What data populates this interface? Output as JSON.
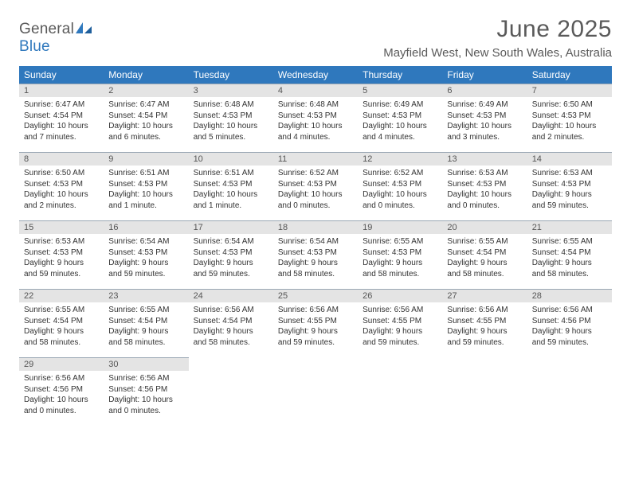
{
  "logo": {
    "text1": "General",
    "text2": "Blue"
  },
  "title": "June 2025",
  "location": "Mayfield West, New South Wales, Australia",
  "colors": {
    "header_bg": "#2f78bd",
    "header_text": "#ffffff",
    "daynum_bg": "#e4e4e4",
    "daynum_border": "#9aa7b4",
    "text": "#333333",
    "muted": "#5a5a5a",
    "page_bg": "#ffffff"
  },
  "typography": {
    "month_title_fontsize": 30,
    "location_fontsize": 15,
    "weekday_fontsize": 12,
    "daynum_fontsize": 11,
    "body_fontsize": 10
  },
  "layout": {
    "columns": 7,
    "rows": 5,
    "cell_aspect": "auto"
  },
  "weekdays": [
    "Sunday",
    "Monday",
    "Tuesday",
    "Wednesday",
    "Thursday",
    "Friday",
    "Saturday"
  ],
  "days": [
    {
      "n": 1,
      "sunrise": "6:47 AM",
      "sunset": "4:54 PM",
      "daylight": "10 hours and 7 minutes."
    },
    {
      "n": 2,
      "sunrise": "6:47 AM",
      "sunset": "4:54 PM",
      "daylight": "10 hours and 6 minutes."
    },
    {
      "n": 3,
      "sunrise": "6:48 AM",
      "sunset": "4:53 PM",
      "daylight": "10 hours and 5 minutes."
    },
    {
      "n": 4,
      "sunrise": "6:48 AM",
      "sunset": "4:53 PM",
      "daylight": "10 hours and 4 minutes."
    },
    {
      "n": 5,
      "sunrise": "6:49 AM",
      "sunset": "4:53 PM",
      "daylight": "10 hours and 4 minutes."
    },
    {
      "n": 6,
      "sunrise": "6:49 AM",
      "sunset": "4:53 PM",
      "daylight": "10 hours and 3 minutes."
    },
    {
      "n": 7,
      "sunrise": "6:50 AM",
      "sunset": "4:53 PM",
      "daylight": "10 hours and 2 minutes."
    },
    {
      "n": 8,
      "sunrise": "6:50 AM",
      "sunset": "4:53 PM",
      "daylight": "10 hours and 2 minutes."
    },
    {
      "n": 9,
      "sunrise": "6:51 AM",
      "sunset": "4:53 PM",
      "daylight": "10 hours and 1 minute."
    },
    {
      "n": 10,
      "sunrise": "6:51 AM",
      "sunset": "4:53 PM",
      "daylight": "10 hours and 1 minute."
    },
    {
      "n": 11,
      "sunrise": "6:52 AM",
      "sunset": "4:53 PM",
      "daylight": "10 hours and 0 minutes."
    },
    {
      "n": 12,
      "sunrise": "6:52 AM",
      "sunset": "4:53 PM",
      "daylight": "10 hours and 0 minutes."
    },
    {
      "n": 13,
      "sunrise": "6:53 AM",
      "sunset": "4:53 PM",
      "daylight": "10 hours and 0 minutes."
    },
    {
      "n": 14,
      "sunrise": "6:53 AM",
      "sunset": "4:53 PM",
      "daylight": "9 hours and 59 minutes."
    },
    {
      "n": 15,
      "sunrise": "6:53 AM",
      "sunset": "4:53 PM",
      "daylight": "9 hours and 59 minutes."
    },
    {
      "n": 16,
      "sunrise": "6:54 AM",
      "sunset": "4:53 PM",
      "daylight": "9 hours and 59 minutes."
    },
    {
      "n": 17,
      "sunrise": "6:54 AM",
      "sunset": "4:53 PM",
      "daylight": "9 hours and 59 minutes."
    },
    {
      "n": 18,
      "sunrise": "6:54 AM",
      "sunset": "4:53 PM",
      "daylight": "9 hours and 58 minutes."
    },
    {
      "n": 19,
      "sunrise": "6:55 AM",
      "sunset": "4:53 PM",
      "daylight": "9 hours and 58 minutes."
    },
    {
      "n": 20,
      "sunrise": "6:55 AM",
      "sunset": "4:54 PM",
      "daylight": "9 hours and 58 minutes."
    },
    {
      "n": 21,
      "sunrise": "6:55 AM",
      "sunset": "4:54 PM",
      "daylight": "9 hours and 58 minutes."
    },
    {
      "n": 22,
      "sunrise": "6:55 AM",
      "sunset": "4:54 PM",
      "daylight": "9 hours and 58 minutes."
    },
    {
      "n": 23,
      "sunrise": "6:55 AM",
      "sunset": "4:54 PM",
      "daylight": "9 hours and 58 minutes."
    },
    {
      "n": 24,
      "sunrise": "6:56 AM",
      "sunset": "4:54 PM",
      "daylight": "9 hours and 58 minutes."
    },
    {
      "n": 25,
      "sunrise": "6:56 AM",
      "sunset": "4:55 PM",
      "daylight": "9 hours and 59 minutes."
    },
    {
      "n": 26,
      "sunrise": "6:56 AM",
      "sunset": "4:55 PM",
      "daylight": "9 hours and 59 minutes."
    },
    {
      "n": 27,
      "sunrise": "6:56 AM",
      "sunset": "4:55 PM",
      "daylight": "9 hours and 59 minutes."
    },
    {
      "n": 28,
      "sunrise": "6:56 AM",
      "sunset": "4:56 PM",
      "daylight": "9 hours and 59 minutes."
    },
    {
      "n": 29,
      "sunrise": "6:56 AM",
      "sunset": "4:56 PM",
      "daylight": "10 hours and 0 minutes."
    },
    {
      "n": 30,
      "sunrise": "6:56 AM",
      "sunset": "4:56 PM",
      "daylight": "10 hours and 0 minutes."
    }
  ],
  "labels": {
    "sunrise": "Sunrise: ",
    "sunset": "Sunset: ",
    "daylight": "Daylight: "
  }
}
